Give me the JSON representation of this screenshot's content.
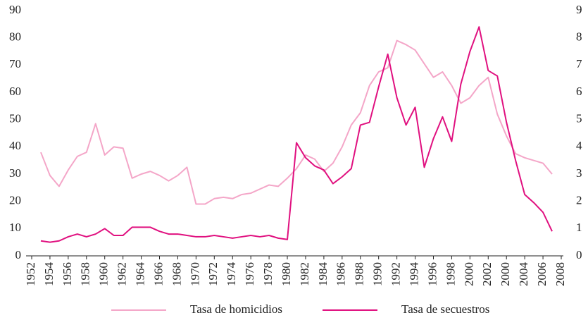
{
  "chart_data": {
    "type": "line",
    "categories": [
      "1952",
      null,
      "1954",
      null,
      "1956",
      null,
      "1958",
      null,
      "1960",
      null,
      "1962",
      null,
      "1964",
      null,
      "1966",
      null,
      "1968",
      null,
      "1970",
      null,
      "1972",
      null,
      "1974",
      null,
      "1976",
      null,
      "1978",
      null,
      "1980",
      null,
      "1982",
      null,
      "1984",
      null,
      "1986",
      null,
      "1988",
      null,
      "1990",
      null,
      "1992",
      null,
      "1994",
      null,
      "1996",
      null,
      "1998",
      null,
      "2000",
      null,
      "2002",
      null,
      "2000",
      null,
      "2004",
      null,
      "2006",
      null,
      "2008"
    ],
    "series": [
      {
        "name": "Tasa de homicidios",
        "color": "#f4a6c8",
        "values": [
          null,
          38,
          29.5,
          25.5,
          31.5,
          36.5,
          38,
          48.5,
          37,
          40,
          39.5,
          28.5,
          30,
          31,
          29.5,
          27.5,
          29.5,
          32.5,
          19,
          19,
          21,
          21.5,
          21,
          22.5,
          23,
          24.5,
          26,
          25.5,
          28.5,
          32,
          37,
          35.5,
          31,
          34,
          40,
          48,
          52.5,
          62.5,
          67.5,
          69,
          79,
          77.5,
          75.5,
          70.5,
          65.5,
          67.5,
          62.5,
          56,
          58,
          62.5,
          65.5,
          52,
          44,
          37.5,
          36,
          35,
          34,
          30,
          null
        ]
      },
      {
        "name": "Tasa de secuestros",
        "color": "#e0107f",
        "axis": "y2",
        "values": [
          null,
          0.55,
          0.5,
          0.55,
          0.7,
          0.8,
          0.7,
          0.8,
          1.0,
          0.75,
          0.75,
          1.05,
          1.05,
          1.05,
          0.9,
          0.8,
          0.8,
          0.75,
          0.7,
          0.7,
          0.75,
          0.7,
          0.65,
          0.7,
          0.75,
          0.7,
          0.75,
          0.65,
          0.6,
          4.15,
          3.6,
          3.3,
          3.15,
          2.65,
          2.9,
          3.2,
          4.8,
          4.9,
          6.2,
          7.4,
          5.8,
          4.8,
          5.45,
          3.25,
          4.3,
          5.1,
          4.2,
          6.3,
          7.5,
          8.4,
          6.8,
          6.6,
          4.9,
          3.5,
          2.25,
          1.95,
          1.6,
          0.9,
          null
        ]
      }
    ],
    "ylim": [
      0,
      90
    ],
    "yticks": [
      0,
      10,
      20,
      30,
      40,
      50,
      60,
      70,
      80,
      90
    ],
    "y2lim": [
      0,
      9
    ],
    "y2ticks": [
      0,
      1,
      2,
      3,
      4,
      5,
      6,
      7,
      8,
      9
    ],
    "legend": "bottom"
  }
}
